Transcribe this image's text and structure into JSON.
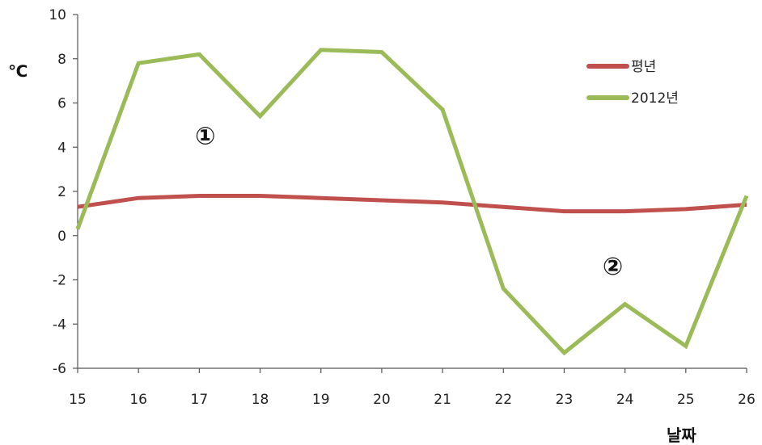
{
  "chart_data": {
    "type": "line",
    "ylabel": "℃",
    "xlabel": "날짜",
    "x": [
      15,
      16,
      17,
      18,
      19,
      20,
      21,
      22,
      23,
      24,
      25,
      26
    ],
    "xlim": [
      15,
      26
    ],
    "ylim": [
      -6,
      10
    ],
    "yticks": [
      -6,
      -4,
      -2,
      0,
      2,
      4,
      6,
      8,
      10
    ],
    "grid": false,
    "legend_position": "top-right",
    "series": [
      {
        "name": "평년",
        "color": "#c0504d",
        "values": [
          1.3,
          1.7,
          1.8,
          1.8,
          1.7,
          1.6,
          1.5,
          1.3,
          1.1,
          1.1,
          1.2,
          1.4
        ]
      },
      {
        "name": "2012년",
        "color": "#9bbb59",
        "values": [
          0.3,
          7.8,
          8.2,
          5.4,
          8.4,
          8.3,
          5.7,
          -2.4,
          -5.3,
          -3.1,
          -5.0,
          1.8
        ]
      }
    ],
    "annotations": [
      {
        "text": "①",
        "x": 17.1,
        "y": 4.5
      },
      {
        "text": "②",
        "x": 23.8,
        "y": -1.4
      }
    ]
  }
}
